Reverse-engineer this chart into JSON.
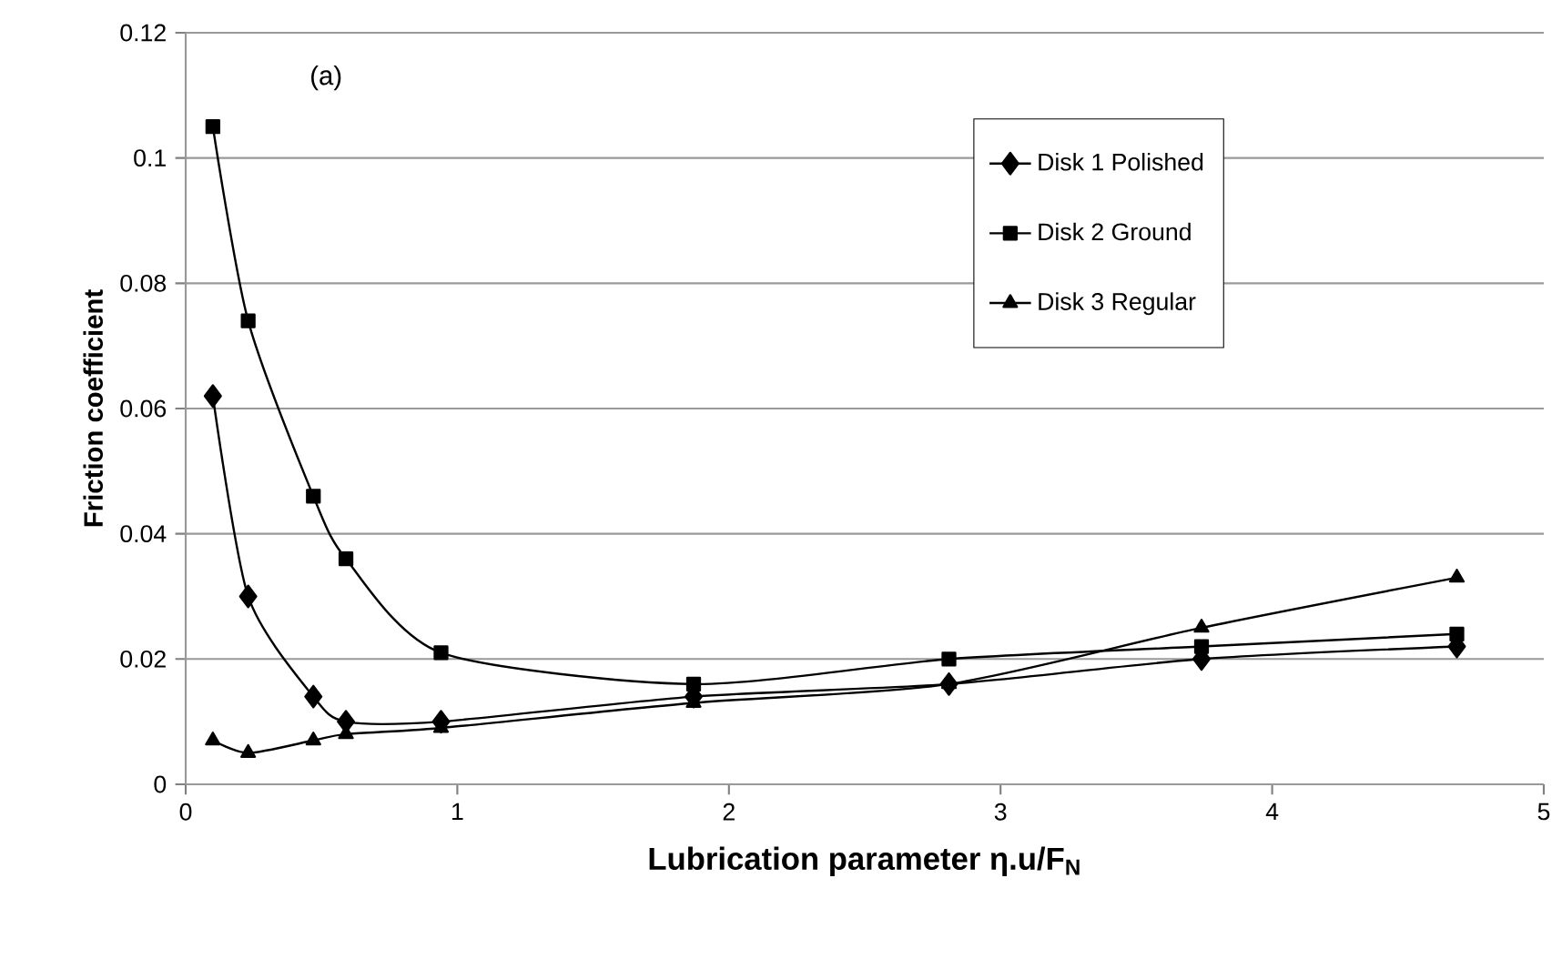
{
  "chart_data": {
    "type": "line",
    "xlabel": "Lubrication parameter  η.u/F$_{N}$",
    "ylabel": "Friction coefficient",
    "annotations": [
      "(a)"
    ],
    "x": [
      0.1,
      0.23,
      0.47,
      0.59,
      0.94,
      1.87,
      2.81,
      3.74,
      4.68
    ],
    "series": [
      {
        "name": "Disk 1 Polished",
        "color": "#000000",
        "marker": "diamond",
        "values": [
          0.062,
          0.03,
          0.014,
          0.01,
          0.01,
          0.014,
          0.016,
          0.02,
          0.022
        ]
      },
      {
        "name": "Disk 2 Ground",
        "color": "#000000",
        "marker": "square",
        "values": [
          0.105,
          0.074,
          0.046,
          0.036,
          0.021,
          0.016,
          0.02,
          0.022,
          0.024
        ]
      },
      {
        "name": "Disk 3 Regular",
        "color": "#000000",
        "marker": "triangle",
        "values": [
          0.007,
          0.005,
          0.007,
          0.008,
          0.009,
          0.013,
          0.016,
          0.025,
          0.033
        ]
      }
    ],
    "xlim": [
      0,
      5
    ],
    "xticks": [
      0,
      1,
      2,
      3,
      4,
      5
    ],
    "ylim": [
      0,
      0.12
    ],
    "yticks": [
      0,
      0.02,
      0.04,
      0.06,
      0.08,
      0.1,
      0.12
    ],
    "grid": "y",
    "legend": "top right",
    "line_style": "solid"
  }
}
